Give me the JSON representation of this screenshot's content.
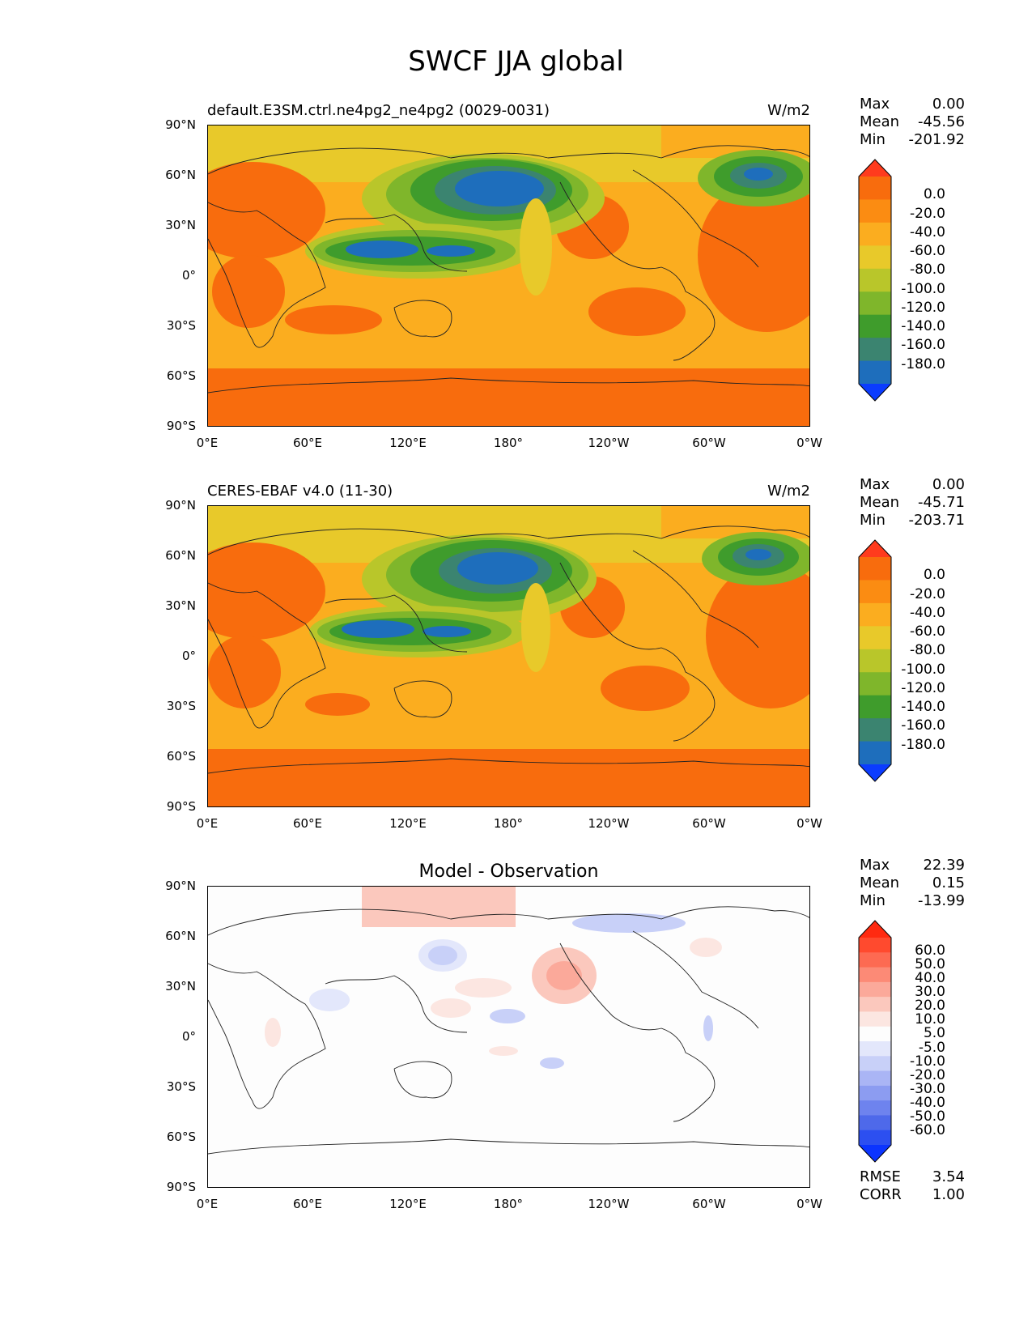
{
  "title": "SWCF JJA global",
  "lat_labels": [
    "90°N",
    "60°N",
    "30°N",
    "0°",
    "30°S",
    "60°S",
    "90°S"
  ],
  "lon_labels": [
    "0°E",
    "60°E",
    "120°E",
    "180°",
    "120°W",
    "60°W",
    "0°W"
  ],
  "panels": [
    {
      "title_left": "default.E3SM.ctrl.ne4pg2_ne4pg2 (0029-0031)",
      "title_right": "W/m2",
      "stats": [
        {
          "label": "Max",
          "value": "0.00"
        },
        {
          "label": "Mean",
          "value": "-45.56"
        },
        {
          "label": "Min",
          "value": "-201.92"
        }
      ],
      "colorbar_labels": [
        "0.0",
        "-20.0",
        "-40.0",
        "-60.0",
        "-80.0",
        "-100.0",
        "-120.0",
        "-140.0",
        "-160.0",
        "-180.0"
      ],
      "colorbar_colors": [
        "#ff3b1d",
        "#f86c0d",
        "#fb8c12",
        "#fbad1f",
        "#e8c92a",
        "#b9c62a",
        "#7fb62b",
        "#3f9c2c",
        "#3b8470",
        "#1e6ebc",
        "#0b3cff"
      ]
    },
    {
      "title_left": "CERES-EBAF v4.0 (11-30)",
      "title_right": "W/m2",
      "stats": [
        {
          "label": "Max",
          "value": "0.00"
        },
        {
          "label": "Mean",
          "value": "-45.71"
        },
        {
          "label": "Min",
          "value": "-203.71"
        }
      ],
      "colorbar_labels": [
        "0.0",
        "-20.0",
        "-40.0",
        "-60.0",
        "-80.0",
        "-100.0",
        "-120.0",
        "-140.0",
        "-160.0",
        "-180.0"
      ],
      "colorbar_colors": [
        "#ff3b1d",
        "#f86c0d",
        "#fb8c12",
        "#fbad1f",
        "#e8c92a",
        "#b9c62a",
        "#7fb62b",
        "#3f9c2c",
        "#3b8470",
        "#1e6ebc",
        "#0b3cff"
      ]
    },
    {
      "title_center": "Model - Observation",
      "stats": [
        {
          "label": "Max",
          "value": "22.39"
        },
        {
          "label": "Mean",
          "value": "0.15"
        },
        {
          "label": "Min",
          "value": "-13.99"
        }
      ],
      "colorbar_labels": [
        "60.0",
        "50.0",
        "40.0",
        "30.0",
        "20.0",
        "10.0",
        "5.0",
        "-5.0",
        "-10.0",
        "-20.0",
        "-30.0",
        "-40.0",
        "-50.0",
        "-60.0"
      ],
      "colorbar_colors": [
        "#ff2a10",
        "#ff4a2e",
        "#fd6a52",
        "#fc8a76",
        "#fba99a",
        "#fbc8bd",
        "#fce6e1",
        "#fdfdfd",
        "#e3e7fb",
        "#c8d0f8",
        "#aab5f5",
        "#8c9cf1",
        "#6e83ee",
        "#4e69ea",
        "#2c4ff0",
        "#0b34ff"
      ],
      "bottom_stats": [
        {
          "label": "RMSE",
          "value": "3.54"
        },
        {
          "label": "CORR",
          "value": "1.00"
        }
      ]
    }
  ]
}
